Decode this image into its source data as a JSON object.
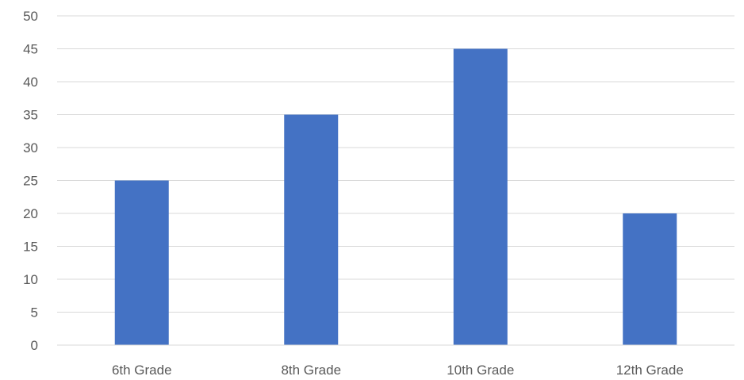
{
  "chart_data": {
    "type": "bar",
    "title": "",
    "xlabel": "",
    "ylabel": "",
    "categories": [
      "6th Grade",
      "8th Grade",
      "10th Grade",
      "12th Grade"
    ],
    "values": [
      25,
      35,
      45,
      20
    ],
    "ylim": [
      0,
      50
    ],
    "yticks": [
      0,
      5,
      10,
      15,
      20,
      25,
      30,
      35,
      40,
      45,
      50
    ],
    "grid": true,
    "legend": "none",
    "bar_color": "#4472c4"
  }
}
